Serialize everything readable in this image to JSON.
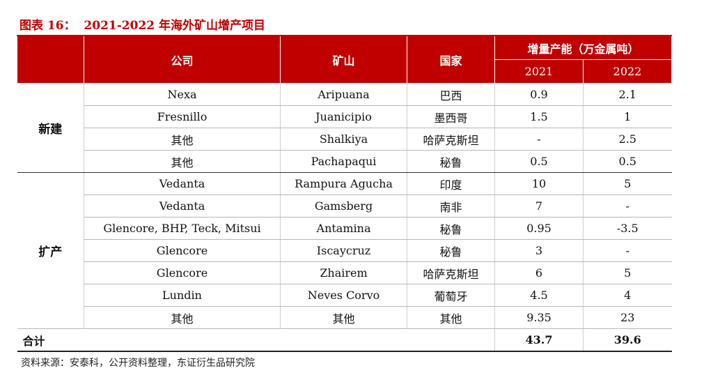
{
  "title": {
    "label": "图表 16：",
    "text": "2021-2022 年海外矿山增产项目"
  },
  "headers": {
    "company": "公司",
    "mine": "矿山",
    "country": "国家",
    "capacity": "增量产能（万金属吨）",
    "y2021": "2021",
    "y2022": "2022"
  },
  "groups": {
    "new": "新建",
    "expand": "扩产"
  },
  "rows": [
    {
      "company": "Nexa",
      "mine": "Aripuana",
      "country": "巴西",
      "v2021": "0.9",
      "v2022": "2.1"
    },
    {
      "company": "Fresnillo",
      "mine": "Juanicipio",
      "country": "墨西哥",
      "v2021": "1.5",
      "v2022": "1"
    },
    {
      "company": "其他",
      "mine": "Shalkiya",
      "country": "哈萨克斯坦",
      "v2021": "-",
      "v2022": "2.5"
    },
    {
      "company": "其他",
      "mine": "Pachapaqui",
      "country": "秘鲁",
      "v2021": "0.5",
      "v2022": "0.5"
    },
    {
      "company": "Vedanta",
      "mine": "Rampura Agucha",
      "country": "印度",
      "v2021": "10",
      "v2022": "5"
    },
    {
      "company": "Vedanta",
      "mine": "Gamsberg",
      "country": "南非",
      "v2021": "7",
      "v2022": "-"
    },
    {
      "company": "Glencore, BHP, Teck, Mitsui",
      "mine": "Antamina",
      "country": "秘鲁",
      "v2021": "0.95",
      "v2022": "-3.5"
    },
    {
      "company": "Glencore",
      "mine": "Iscaycruz",
      "country": "秘鲁",
      "v2021": "3",
      "v2022": "-"
    },
    {
      "company": "Glencore",
      "mine": "Zhairem",
      "country": "哈萨克斯坦",
      "v2021": "6",
      "v2022": "5"
    },
    {
      "company": "Lundin",
      "mine": "Neves Corvo",
      "country": "葡萄牙",
      "v2021": "4.5",
      "v2022": "4"
    },
    {
      "company": "其他",
      "mine": "其他",
      "country": "其他",
      "v2021": "9.35",
      "v2022": "23"
    }
  ],
  "total": {
    "label": "合计",
    "v2021": "43.7",
    "v2022": "39.6"
  },
  "source": "资料来源：安泰科，公开资料整理，东证衍生品研究院",
  "colors": {
    "header_bg": "#c00000",
    "header_text": "#ffffff"
  }
}
